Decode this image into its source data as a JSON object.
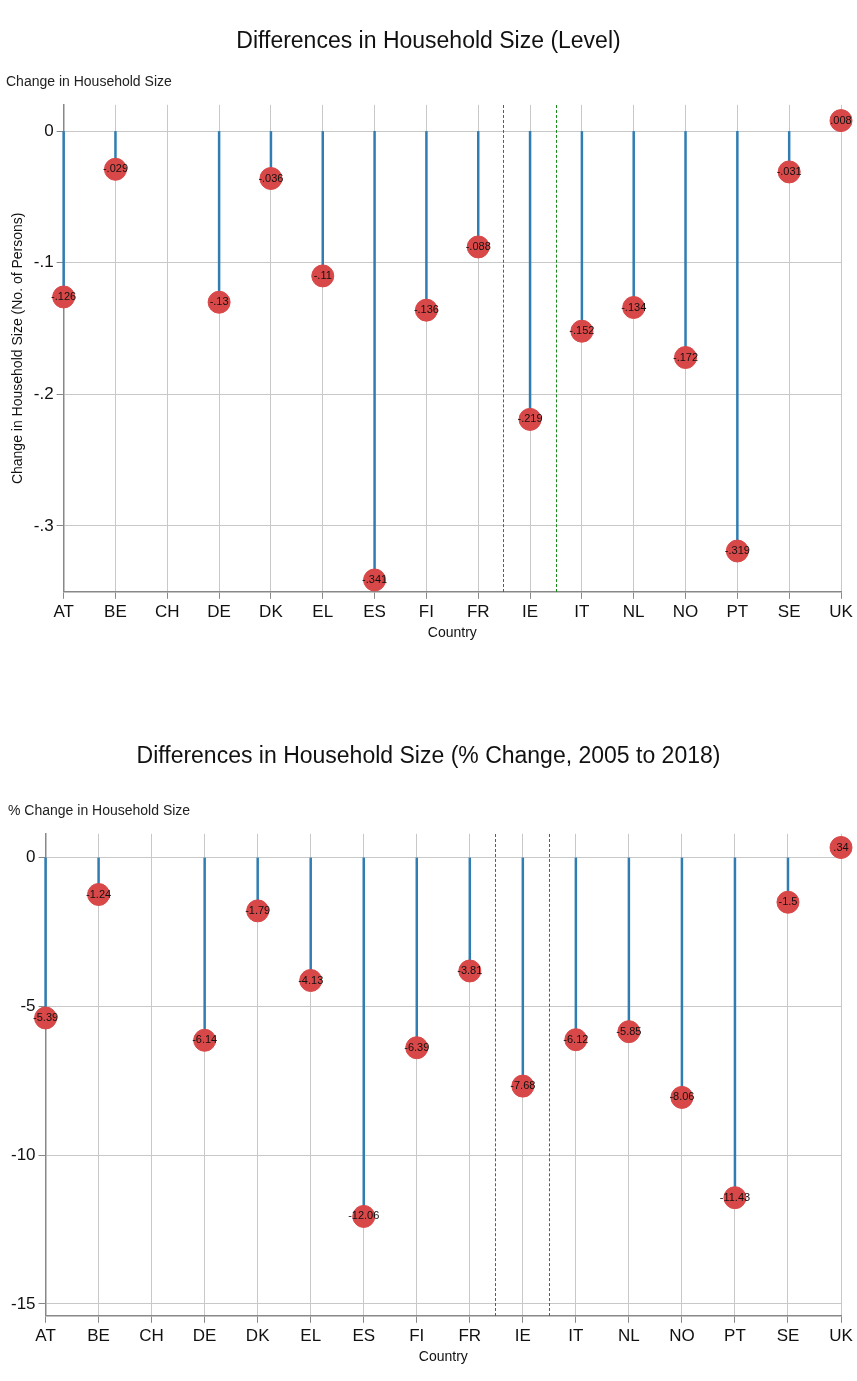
{
  "chart_data": [
    {
      "type": "lollipop",
      "title": "Differences in Household Size (Level)",
      "subtitle": "Change in Household Size",
      "xlabel": "Country",
      "ylabel": "Change in Household Size (No. of Persons)",
      "categories": [
        "AT",
        "BE",
        "CH",
        "DE",
        "DK",
        "EL",
        "ES",
        "FI",
        "FR",
        "IE",
        "IT",
        "NL",
        "NO",
        "PT",
        "SE",
        "UK"
      ],
      "series": [
        {
          "color": "#d94848",
          "values": [
            -0.126,
            -0.029,
            null,
            -0.13,
            -0.036,
            -0.11,
            -0.341,
            -0.136,
            -0.088,
            -0.219,
            -0.152,
            -0.134,
            -0.172,
            -0.319,
            -0.031,
            0.008
          ],
          "value_labels": [
            "-.126",
            "-.029",
            null,
            "-.13",
            "-.036",
            "-.11",
            "-.341",
            "-.136",
            "-.088",
            "-.219",
            "-.152",
            "-.134",
            "-.172",
            "-.319",
            "-.031",
            ".008"
          ]
        }
      ],
      "ylim": [
        -0.35,
        0.02
      ],
      "yticks": [
        {
          "value": -0.3,
          "label": "-.3"
        },
        {
          "value": -0.2,
          "label": "-.2"
        },
        {
          "value": -0.1,
          "label": "-.1"
        },
        0
      ],
      "grid": true,
      "legend": false,
      "marker": "circle"
    },
    {
      "type": "lollipop",
      "title": "Differences in Household Size (% Change, 2005 to 2018)",
      "subtitle": "% Change in Household Size",
      "xlabel": "Country",
      "categories": [
        "AT",
        "BE",
        "CH",
        "DE",
        "DK",
        "EL",
        "ES",
        "FI",
        "FR",
        "IE",
        "IT",
        "NL",
        "NO",
        "PT",
        "SE",
        "UK"
      ],
      "series": [
        {
          "color": "#d94848",
          "values": [
            -5.39,
            -1.24,
            null,
            -6.14,
            -1.79,
            -4.13,
            -12.06,
            -6.39,
            -3.81,
            -7.68,
            -6.12,
            -5.85,
            -8.06,
            -11.43,
            -1.5,
            0.34
          ],
          "value_labels": [
            "-5.39",
            "-1.24",
            null,
            "-6.14",
            "-1.79",
            "-4.13",
            "-12.06",
            "-6.39",
            "-3.81",
            "-7.68",
            "-6.12",
            "-5.85",
            "-8.06",
            "-11.43",
            "-1.5",
            ".34"
          ]
        }
      ],
      "ylim": [
        -15.4,
        0.8
      ],
      "yticks": [
        -15,
        -10,
        -5,
        0
      ],
      "grid": true,
      "legend": false,
      "marker": "circle"
    }
  ]
}
